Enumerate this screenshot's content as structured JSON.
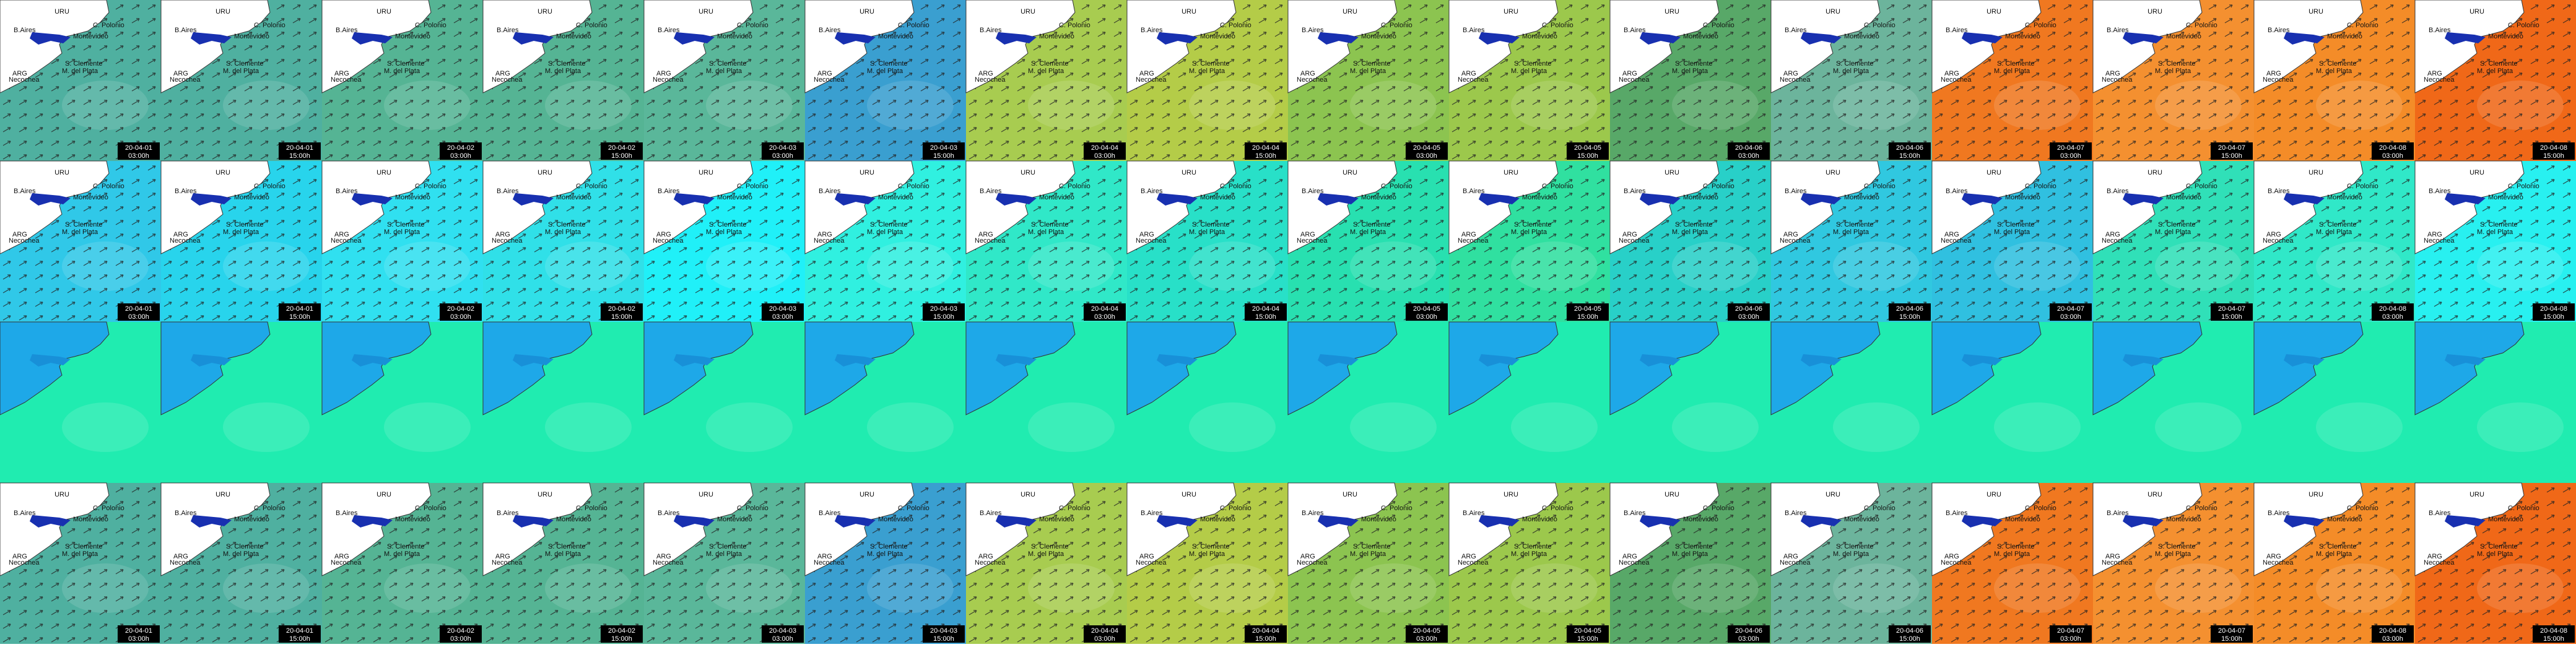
{
  "places": [
    "URU",
    "B.Aires",
    "C. Polonio",
    "Montevideo",
    "ARG",
    "S. Clemente",
    "M. del Plata",
    "Necochea"
  ],
  "frames": [
    {
      "date": "20-04-01",
      "time": "03:00h"
    },
    {
      "date": "20-04-01",
      "time": "15:00h"
    },
    {
      "date": "20-04-02",
      "time": "03:00h"
    },
    {
      "date": "20-04-02",
      "time": "15:00h"
    },
    {
      "date": "20-04-03",
      "time": "03:00h"
    },
    {
      "date": "20-04-03",
      "time": "15:00h"
    },
    {
      "date": "20-04-04",
      "time": "03:00h"
    },
    {
      "date": "20-04-04",
      "time": "15:00h"
    },
    {
      "date": "20-04-05",
      "time": "03:00h"
    },
    {
      "date": "20-04-05",
      "time": "15:00h"
    },
    {
      "date": "20-04-06",
      "time": "03:00h"
    },
    {
      "date": "20-04-06",
      "time": "15:00h"
    },
    {
      "date": "20-04-07",
      "time": "03:00h"
    },
    {
      "date": "20-04-07",
      "time": "15:00h"
    },
    {
      "date": "20-04-08",
      "time": "03:00h"
    },
    {
      "date": "20-04-08",
      "time": "15:00h"
    }
  ],
  "rows": [
    {
      "show_labels": true,
      "land": "#ffffff",
      "arrows": true,
      "colors": [
        "#4fb0a0",
        "#4fb0a0",
        "#55b494",
        "#55b494",
        "#5ab79a",
        "#3a9fd0",
        "#a8cc50",
        "#b4cc48",
        "#8cc450",
        "#9cc84c",
        "#58a868",
        "#6cb49c",
        "#f07820",
        "#f49030",
        "#f48c28",
        "#f06818"
      ]
    },
    {
      "show_labels": true,
      "land": "#ffffff",
      "arrows": true,
      "colors": [
        "#30c8e8",
        "#28d4ec",
        "#30e0f0",
        "#30e0e8",
        "#20f0f8",
        "#30f0e0",
        "#30e8c8",
        "#28e0c8",
        "#28e0b0",
        "#30e0a0",
        "#28d0c8",
        "#30c8e0",
        "#30c0e0",
        "#30e0b8",
        "#30e8c8",
        "#28f0f0"
      ]
    },
    {
      "show_labels": false,
      "land": "#1ea8e8",
      "arrows": false,
      "colors": [
        "#20ecb0",
        "#20ecb0",
        "#20ecb0",
        "#20ecb0",
        "#20ecb0",
        "#20ecb0",
        "#20ecb0",
        "#20ecb0",
        "#20ecb0",
        "#20ecb0",
        "#20ecb0",
        "#20ecb0",
        "#20ecb0",
        "#20ecb0",
        "#20ecb0",
        "#20ecb0"
      ]
    },
    {
      "show_labels": true,
      "land": "#ffffff",
      "arrows": true,
      "colors": [
        "#4fb0a0",
        "#4fb0a0",
        "#55b494",
        "#55b494",
        "#5ab79a",
        "#3a9fd0",
        "#a8cc50",
        "#b4cc48",
        "#8cc450",
        "#9cc84c",
        "#58a868",
        "#6cb49c",
        "#f07820",
        "#f49030",
        "#f48c28",
        "#f06818"
      ]
    }
  ]
}
